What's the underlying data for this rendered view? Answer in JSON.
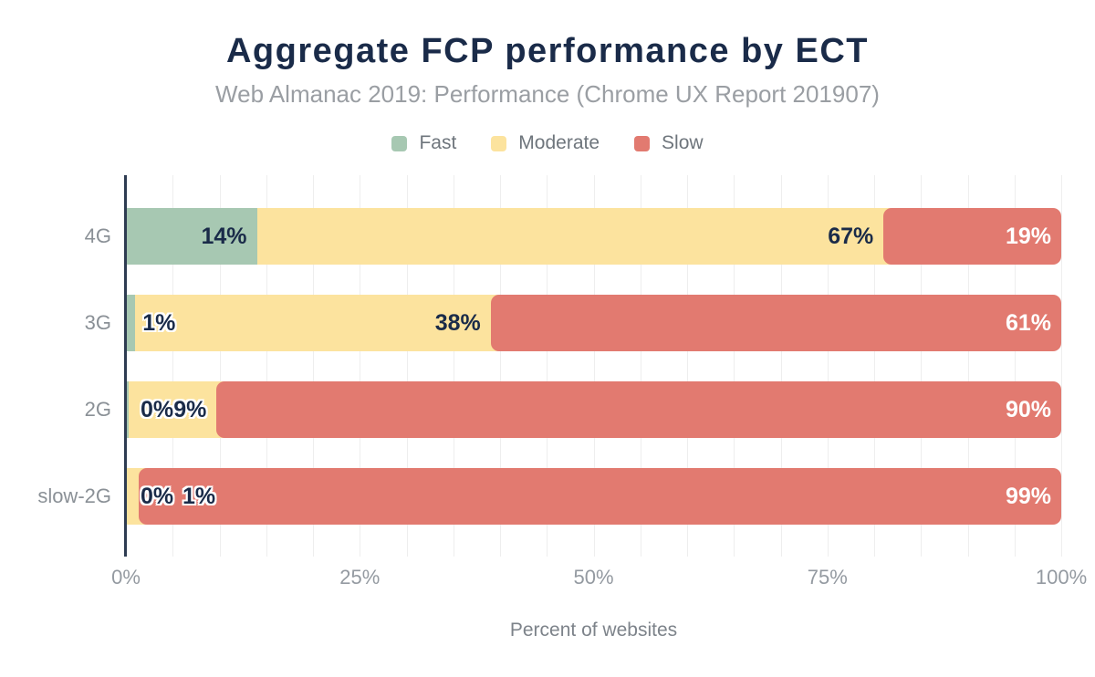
{
  "chart_data": {
    "type": "bar",
    "variant": "horizontal-stacked",
    "title": "Aggregate FCP performance by ECT",
    "subtitle": "Web Almanac 2019: Performance (Chrome UX Report 201907)",
    "xlabel": "Percent of websites",
    "xlim": [
      0,
      100
    ],
    "x_ticks": [
      "0%",
      "25%",
      "50%",
      "75%",
      "100%"
    ],
    "x_tick_pcts": [
      0,
      25,
      50,
      75,
      100
    ],
    "grid": {
      "on": true,
      "step_pct": 5,
      "color": "#eeeeee"
    },
    "legend": {
      "position": "top",
      "items": [
        {
          "name": "Fast",
          "color": "#a7c8b2"
        },
        {
          "name": "Moderate",
          "color": "#fce39e"
        },
        {
          "name": "Slow",
          "color": "#e27a70"
        }
      ]
    },
    "categories": [
      "4G",
      "3G",
      "2G",
      "slow-2G"
    ],
    "rows": [
      {
        "category": "4G",
        "segments": [
          {
            "series": "Fast",
            "pct": 14,
            "label": "14%",
            "inside": true,
            "halo": false
          },
          {
            "series": "Moderate",
            "pct": 67,
            "label": "67%",
            "inside": true,
            "halo": false
          },
          {
            "series": "Slow",
            "pct": 19,
            "label": "19%",
            "inside": true,
            "halo": false
          }
        ]
      },
      {
        "category": "3G",
        "segments": [
          {
            "series": "Fast",
            "pct": 1,
            "label": "1%",
            "inside": false,
            "halo": true
          },
          {
            "series": "Moderate",
            "pct": 38,
            "label": "38%",
            "inside": true,
            "halo": false
          },
          {
            "series": "Slow",
            "pct": 61,
            "label": "61%",
            "inside": true,
            "halo": false
          }
        ]
      },
      {
        "category": "2G",
        "segments": [
          {
            "series": "Fast",
            "pct": 0.3,
            "label": "0%",
            "inside": false,
            "halo": true
          },
          {
            "series": "Moderate",
            "pct": 9.4,
            "label": "9%",
            "inside": true,
            "halo": true
          },
          {
            "series": "Slow",
            "pct": 90.3,
            "label": "90%",
            "inside": true,
            "halo": false
          }
        ]
      },
      {
        "category": "slow-2G",
        "segments": [
          {
            "series": "Fast",
            "pct": 0.1,
            "label": "0%",
            "inside": false,
            "halo": true
          },
          {
            "series": "Moderate",
            "pct": 1.3,
            "label": "1%",
            "inside": false,
            "halo": true
          },
          {
            "series": "Slow",
            "pct": 98.6,
            "label": "99%",
            "inside": true,
            "halo": false
          }
        ]
      }
    ],
    "colors": {
      "title_text": "#1a2b49",
      "subtitle_text": "#9a9ea3",
      "legend_text": "#6e757c",
      "category_text": "#8a9096",
      "tick_text": "#949aa1",
      "axis_title_text": "#7d838a",
      "axis_line": "#2e3c52",
      "label_dark": "#1a2b49",
      "label_light": "#ffffff"
    }
  }
}
